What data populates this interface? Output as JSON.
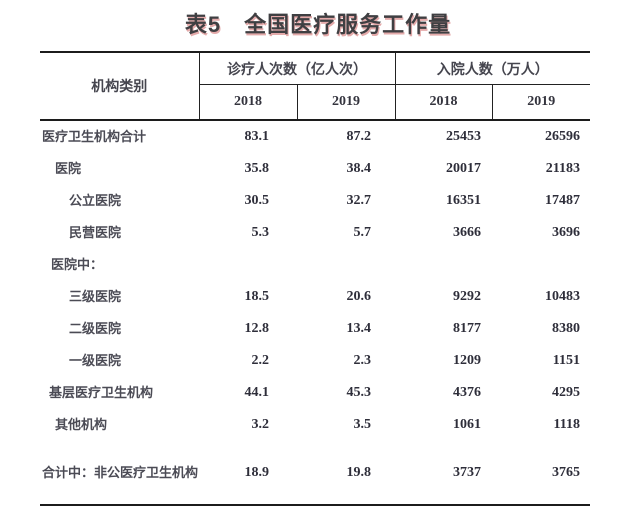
{
  "title": "表5　全国医疗服务工作量",
  "table": {
    "corner_header": "机构类别",
    "groups": [
      {
        "label": "诊疗人次数（亿人次）"
      },
      {
        "label": "入院人数（万人）"
      }
    ],
    "years": [
      "2018",
      "2019",
      "2018",
      "2019"
    ],
    "rows": [
      {
        "label": "医疗卫生机构合计",
        "visits_2018": "83.1",
        "visits_2019": "87.2",
        "admissions_2018": "25453",
        "admissions_2019": "26596"
      },
      {
        "label": "医院",
        "visits_2018": "35.8",
        "visits_2019": "38.4",
        "admissions_2018": "20017",
        "admissions_2019": "21183"
      },
      {
        "label": "公立医院",
        "visits_2018": "30.5",
        "visits_2019": "32.7",
        "admissions_2018": "16351",
        "admissions_2019": "17487"
      },
      {
        "label": "民营医院",
        "visits_2018": "5.3",
        "visits_2019": "5.7",
        "admissions_2018": "3666",
        "admissions_2019": "3696"
      },
      {
        "label": "医院中：",
        "visits_2018": "",
        "visits_2019": "",
        "admissions_2018": "",
        "admissions_2019": ""
      },
      {
        "label": "三级医院",
        "visits_2018": "18.5",
        "visits_2019": "20.6",
        "admissions_2018": "9292",
        "admissions_2019": "10483"
      },
      {
        "label": "二级医院",
        "visits_2018": "12.8",
        "visits_2019": "13.4",
        "admissions_2018": "8177",
        "admissions_2019": "8380"
      },
      {
        "label": "一级医院",
        "visits_2018": "2.2",
        "visits_2019": "2.3",
        "admissions_2018": "1209",
        "admissions_2019": "1151"
      },
      {
        "label": "基层医疗卫生机构",
        "visits_2018": "44.1",
        "visits_2019": "45.3",
        "admissions_2018": "4376",
        "admissions_2019": "4295"
      },
      {
        "label": "其他机构",
        "visits_2018": "3.2",
        "visits_2019": "3.5",
        "admissions_2018": "1061",
        "admissions_2019": "1118"
      },
      {
        "label": "合计中：非公医疗卫生机构",
        "visits_2018": "18.9",
        "visits_2019": "19.8",
        "admissions_2018": "3737",
        "admissions_2019": "3765"
      }
    ]
  }
}
